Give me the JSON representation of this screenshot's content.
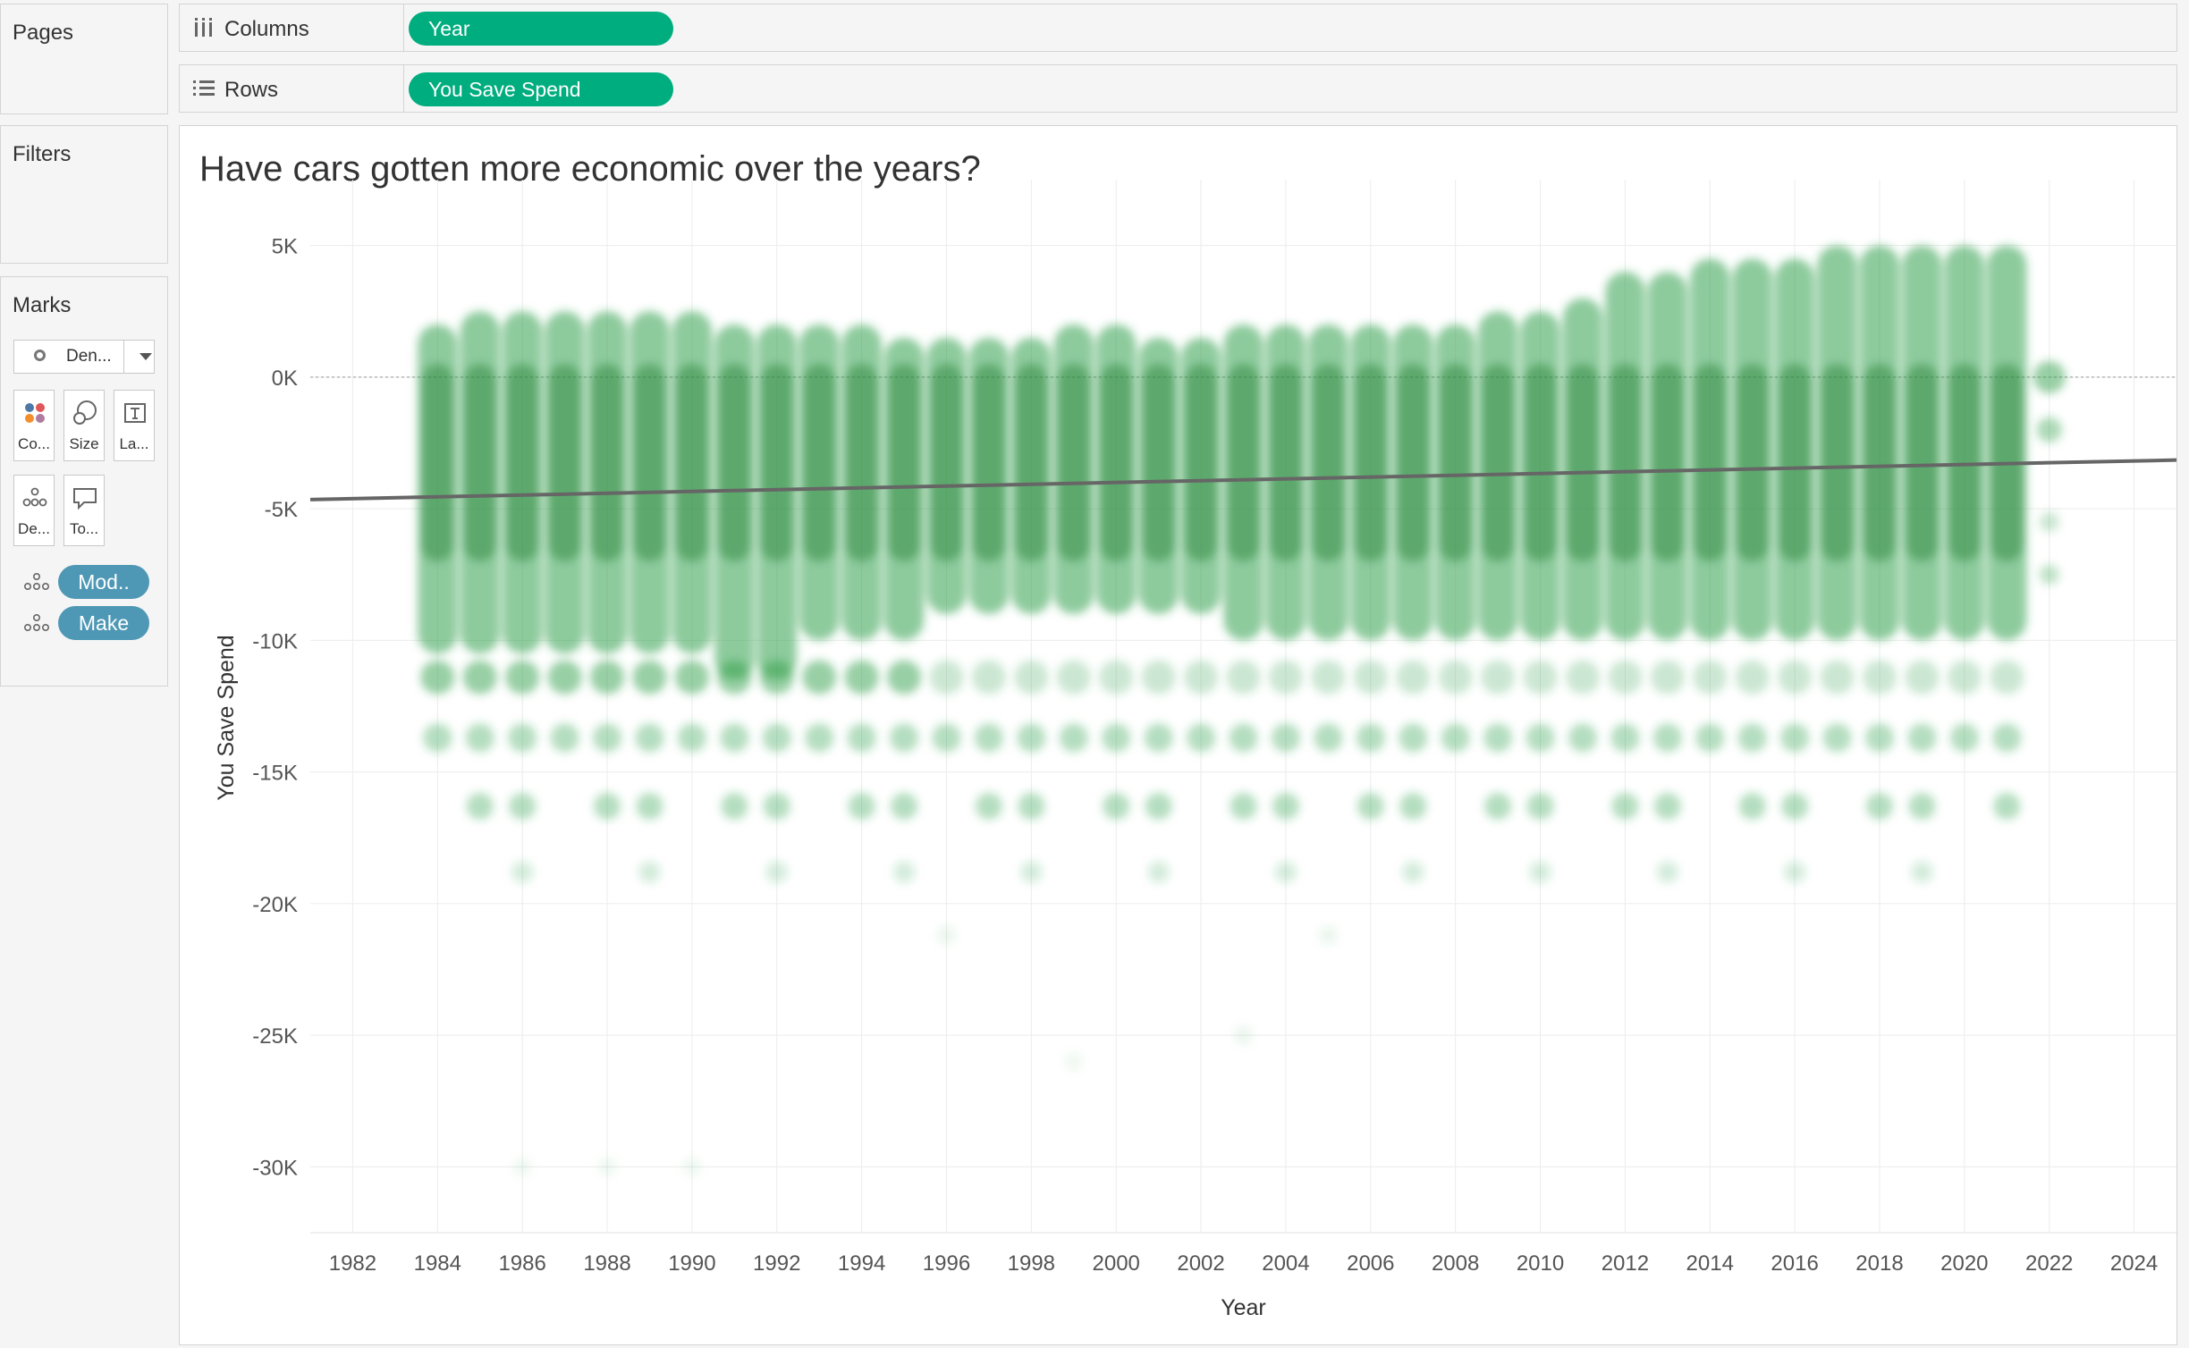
{
  "shelves": {
    "pages_label": "Pages",
    "filters_label": "Filters",
    "marks_label": "Marks",
    "columns": {
      "label": "Columns",
      "pill": "Year"
    },
    "rows": {
      "label": "Rows",
      "pill": "You Save Spend"
    }
  },
  "marks": {
    "type": "Den...",
    "buttons": [
      {
        "label": "Co...",
        "icon": "color-icon"
      },
      {
        "label": "Size",
        "icon": "size-icon"
      },
      {
        "label": "La...",
        "icon": "label-icon"
      },
      {
        "label": "De...",
        "icon": "detail-icon"
      },
      {
        "label": "To...",
        "icon": "tooltip-icon"
      }
    ],
    "detail_pills": [
      "Mod..",
      "Make"
    ],
    "colors": {
      "detail_pill": "#4e98b5",
      "shelf_pill": "#00ad7e"
    }
  },
  "view": {
    "title": "Have cars gotten more economic over the years?"
  },
  "chart_data": {
    "type": "density",
    "title": "Have cars gotten more economic over the years?",
    "xlabel": "Year",
    "ylabel": "You Save Spend",
    "xlim": [
      1981,
      2025
    ],
    "ylim": [
      -32500,
      7500
    ],
    "xticks": [
      1982,
      1984,
      1986,
      1988,
      1990,
      1992,
      1994,
      1996,
      1998,
      2000,
      2002,
      2004,
      2006,
      2008,
      2010,
      2012,
      2014,
      2016,
      2018,
      2020,
      2022,
      2024
    ],
    "xtick_labels": [
      "1982",
      "1984",
      "1986",
      "1988",
      "1990",
      "1992",
      "1994",
      "1996",
      "1998",
      "2000",
      "2002",
      "2004",
      "2006",
      "2008",
      "2010",
      "2012",
      "2014",
      "2016",
      "2018",
      "2020",
      "2022",
      "2024"
    ],
    "yticks": [
      5000,
      0,
      -5000,
      -10000,
      -15000,
      -20000,
      -25000,
      -30000
    ],
    "ytick_labels": [
      "5K",
      "0K",
      "-5K",
      "-10K",
      "-15K",
      "-20K",
      "-25K",
      "-30K"
    ],
    "reference_line_y": 0,
    "density_color": "#2fa04a",
    "trend_line": {
      "x": [
        1981,
        2025
      ],
      "y": [
        -4650,
        -3150
      ],
      "color": "#666666"
    },
    "series": [
      {
        "name": "density_main",
        "years": [
          1984,
          1985,
          1986,
          1987,
          1988,
          1989,
          1990,
          1991,
          1992,
          1993,
          1994,
          1995,
          1996,
          1997,
          1998,
          1999,
          2000,
          2001,
          2002,
          2003,
          2004,
          2005,
          2006,
          2007,
          2008,
          2009,
          2010,
          2011,
          2012,
          2013,
          2014,
          2015,
          2016,
          2017,
          2018,
          2019,
          2020,
          2021
        ],
        "top": [
          2000,
          2500,
          2500,
          2500,
          2500,
          2500,
          2500,
          2000,
          2000,
          2000,
          2000,
          1500,
          1500,
          1500,
          1500,
          2000,
          2000,
          1500,
          1500,
          2000,
          2000,
          2000,
          2000,
          2000,
          2000,
          2500,
          2500,
          3000,
          4000,
          4000,
          4500,
          4500,
          4500,
          5000,
          5000,
          5000,
          5000,
          5000
        ],
        "bottom": [
          -10500,
          -10500,
          -10500,
          -10500,
          -10500,
          -10500,
          -10500,
          -11500,
          -11500,
          -10000,
          -10000,
          -10000,
          -9000,
          -9000,
          -9000,
          -9000,
          -9000,
          -9000,
          -9000,
          -10000,
          -10000,
          -10000,
          -10000,
          -10000,
          -10000,
          -10000,
          -10000,
          -10000,
          -10000,
          -10000,
          -10000,
          -10000,
          -10000,
          -10000,
          -10000,
          -10000,
          -10000,
          -10000
        ]
      }
    ]
  }
}
